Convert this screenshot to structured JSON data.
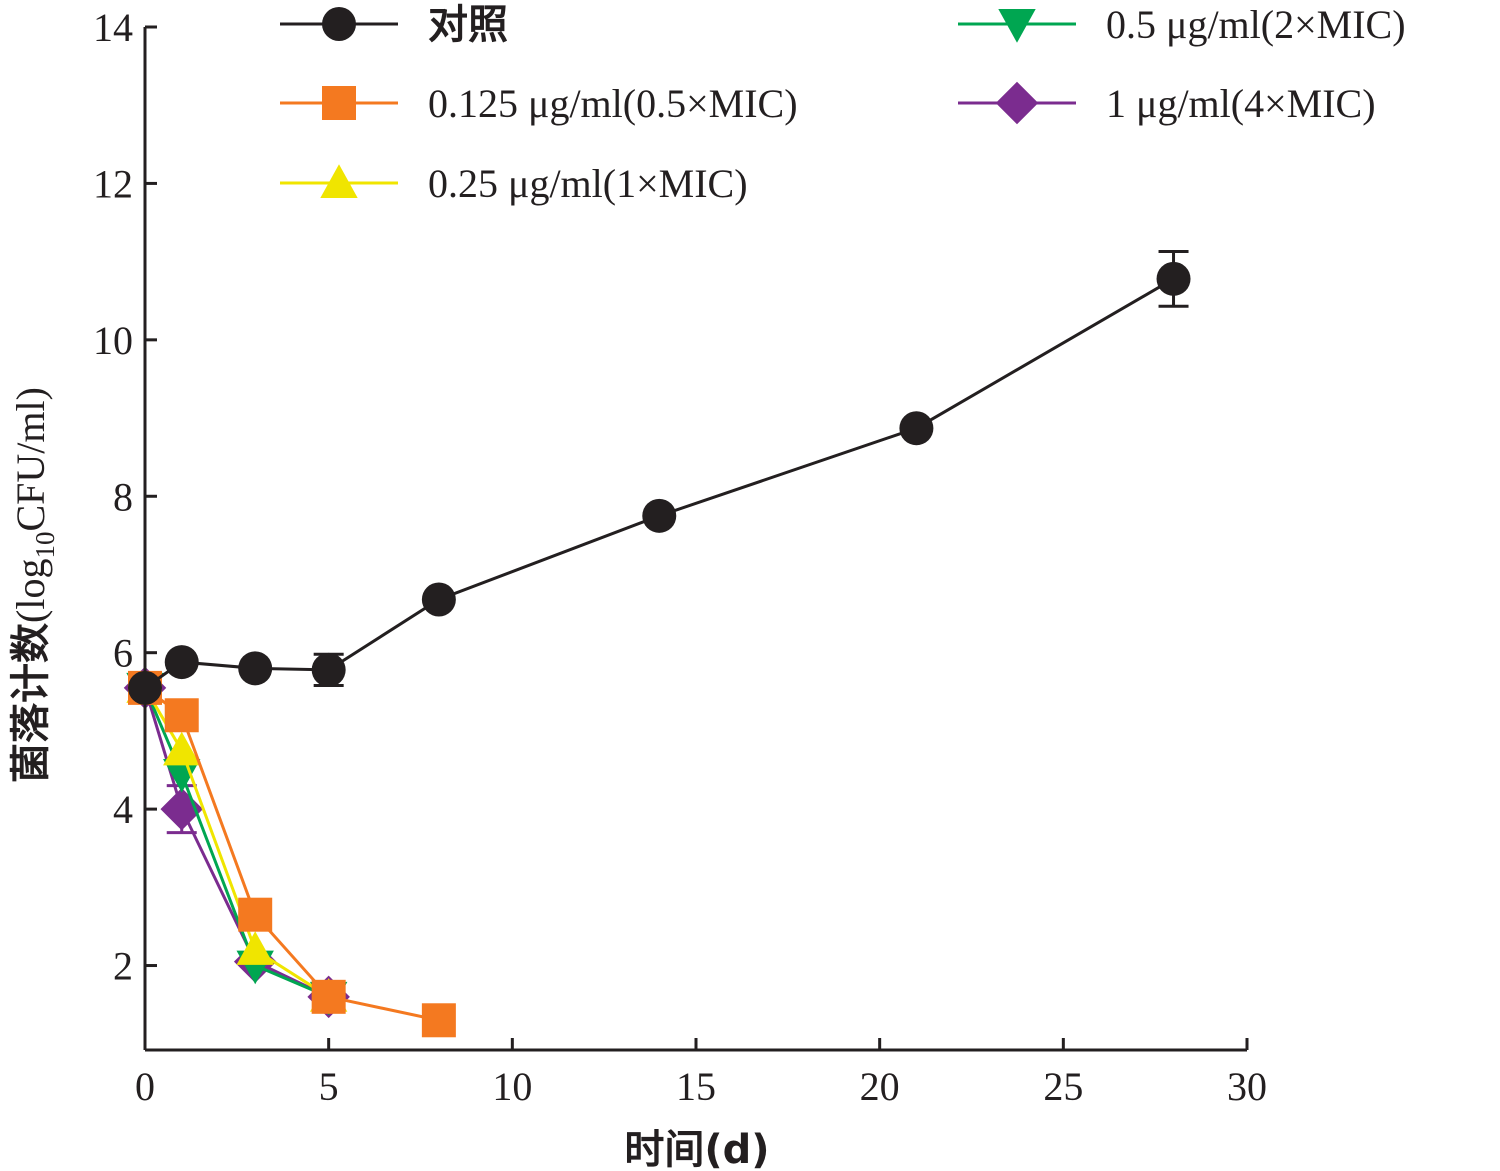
{
  "chart_data": {
    "type": "line",
    "title": "",
    "xlabel": "时间(d)",
    "ylabel_main": "菌落计数",
    "ylabel_unit_pre": "(log",
    "ylabel_unit_sub": "10",
    "ylabel_unit_post": "CFU/ml)",
    "xlim": [
      0,
      30
    ],
    "ylim": [
      1,
      14
    ],
    "xticks": [
      "0",
      "5",
      "10",
      "15",
      "20",
      "25",
      "30"
    ],
    "yticks": [
      "2",
      "4",
      "6",
      "8",
      "10",
      "12",
      "14"
    ],
    "grid": false,
    "legend_position": "top",
    "series": [
      {
        "name": "对照",
        "color": "#231f20",
        "marker": "circle",
        "x": [
          0,
          1,
          3,
          5,
          8,
          14,
          21,
          28
        ],
        "y": [
          5.55,
          5.88,
          5.8,
          5.78,
          6.68,
          7.75,
          8.87,
          10.78
        ],
        "err": [
          0,
          0,
          0,
          0.2,
          0,
          0,
          0,
          0.35
        ]
      },
      {
        "name": "0.125 μg/ml(0.5×MIC)",
        "color": "#f47920",
        "marker": "square",
        "x": [
          0,
          1,
          3,
          5,
          8
        ],
        "y": [
          5.55,
          5.2,
          2.65,
          1.6,
          1.3
        ],
        "err": [
          0,
          0,
          0,
          0,
          0
        ]
      },
      {
        "name": "0.25 μg/ml(1×MIC)",
        "color": "#f0e500",
        "marker": "triangle-up",
        "x": [
          0,
          1,
          3,
          5
        ],
        "y": [
          5.55,
          4.75,
          2.2,
          1.6
        ],
        "err": [
          0,
          0,
          0,
          0
        ]
      },
      {
        "name": "0.5 μg/ml(2×MIC)",
        "color": "#00a651",
        "marker": "triangle-down",
        "x": [
          0,
          1,
          3,
          5
        ],
        "y": [
          5.55,
          4.45,
          2.0,
          1.6
        ],
        "err": [
          0,
          0,
          0,
          0
        ]
      },
      {
        "name": "1 μg/ml(4×MIC)",
        "color": "#7b2c8f",
        "marker": "diamond",
        "x": [
          0,
          1,
          3,
          5
        ],
        "y": [
          5.55,
          4.0,
          2.05,
          1.6
        ],
        "err": [
          0,
          0.3,
          0,
          0
        ]
      }
    ]
  }
}
